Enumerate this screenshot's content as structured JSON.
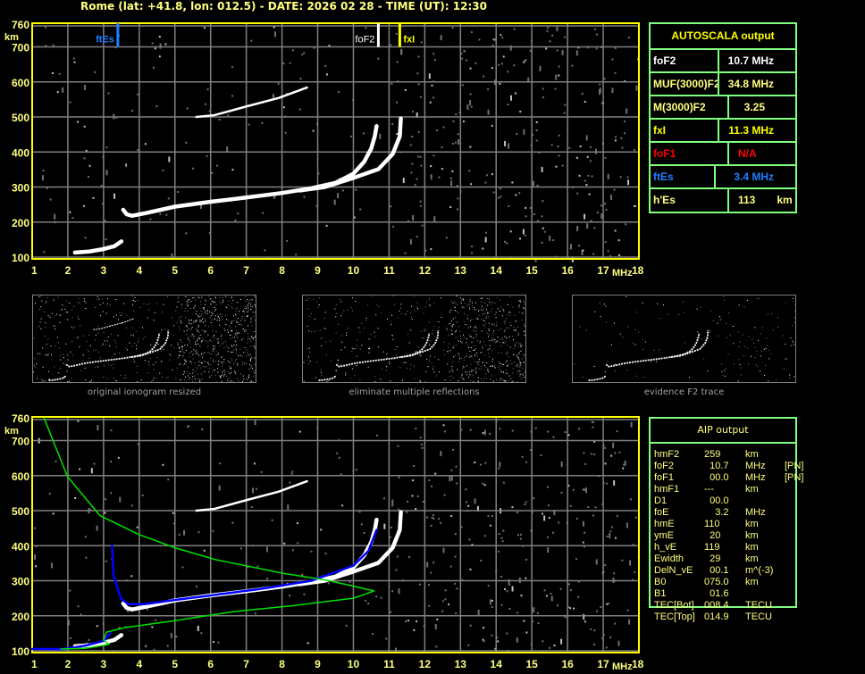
{
  "header": {
    "title": "Rome (lat: +41.8, lon: 012.5) - DATE: 2026 02 28 - TIME (UT): 12:30"
  },
  "autoscala": {
    "title": "AUTOSCALA output",
    "rows": [
      {
        "label": "foF2",
        "value": "10.7 MHz",
        "unit": "",
        "color": "#ffffff"
      },
      {
        "label": "MUF(3000)F2",
        "value": "34.8 MHz",
        "unit": "",
        "color": "#ffff80"
      },
      {
        "label": "M(3000)F2",
        "value": "  3.25",
        "unit": "",
        "color": "#ffff80"
      },
      {
        "label": "fxI",
        "value": "11.3 MHz",
        "unit": "",
        "color": "#ffff00"
      },
      {
        "label": "foF1",
        "value": "N/A",
        "unit": "",
        "color": "#ff0000"
      },
      {
        "label": "ftEs",
        "value": "   3.4 MHz",
        "unit": "",
        "color": "#1e7fff"
      },
      {
        "label": "h'Es",
        "value": "113",
        "unit": "km",
        "color": "#ffff80"
      }
    ]
  },
  "aip": {
    "title": "AIP output",
    "rows": [
      {
        "param": "hmF2",
        "value": "259",
        "unit": "km",
        "flag": ""
      },
      {
        "param": "foF2",
        "value": "  10.7",
        "unit": "MHz",
        "flag": "[PN]"
      },
      {
        "param": "foF1",
        "value": "  00.0",
        "unit": "MHz",
        "flag": "[PN]"
      },
      {
        "param": "hmF1",
        "value": "---",
        "unit": "km",
        "flag": ""
      },
      {
        "param": "D1",
        "value": "  00.0",
        "unit": "",
        "flag": ""
      },
      {
        "param": "foE",
        "value": "    3.2",
        "unit": "MHz",
        "flag": ""
      },
      {
        "param": "hmE",
        "value": "110",
        "unit": "km",
        "flag": ""
      },
      {
        "param": "ymE",
        "value": "  20",
        "unit": "km",
        "flag": ""
      },
      {
        "param": "h_vE",
        "value": "119",
        "unit": "km",
        "flag": ""
      },
      {
        "param": "Ewidth",
        "value": "  29",
        "unit": "km",
        "flag": ""
      },
      {
        "param": "DelN_vE",
        "value": "  00.1",
        "unit": "m^(-3)",
        "flag": ""
      },
      {
        "param": "B0",
        "value": "075.0",
        "unit": "km",
        "flag": ""
      },
      {
        "param": "B1",
        "value": "  01.6",
        "unit": "",
        "flag": ""
      },
      {
        "param": "TEC[Bot]",
        "value": "008.4",
        "unit": "TECU",
        "flag": ""
      },
      {
        "param": "TEC[Top]",
        "value": "014.9",
        "unit": "TECU",
        "flag": ""
      }
    ]
  },
  "thumbnails": [
    {
      "caption": "original ionogram resized"
    },
    {
      "caption": "eliminate multiple reflections"
    },
    {
      "caption": "evidence F2 trace"
    }
  ],
  "colors": {
    "frame": "#ffff00",
    "grid": "#808080",
    "table_border": "#80ff80",
    "label": "#ffff80",
    "trace": "#ffffff",
    "fit": "#0000ff",
    "profile": "#00e000"
  },
  "chart_data": [
    {
      "type": "scatter",
      "xlabel": "MHz",
      "ylabel": "km",
      "xlim": [
        1,
        18
      ],
      "ylim": [
        100,
        760
      ],
      "xticks": [
        "1",
        "2",
        "3",
        "4",
        "5",
        "6",
        "7",
        "8",
        "9",
        "10",
        "11",
        "12",
        "13",
        "14",
        "15",
        "16",
        "17",
        "18"
      ],
      "yticks": [
        "100",
        "200",
        "300",
        "400",
        "500",
        "600",
        "700",
        "760"
      ],
      "grid": true,
      "series": [
        {
          "kind": "trace",
          "color": "#ffffff",
          "points": [
            [
              2.2,
              113
            ],
            [
              2.6,
              116
            ],
            [
              3.0,
              123
            ],
            [
              3.3,
              131
            ],
            [
              3.5,
              145
            ]
          ]
        },
        {
          "kind": "trace",
          "color": "#ffffff",
          "points": [
            [
              3.55,
              235
            ],
            [
              3.65,
              222
            ],
            [
              3.8,
              218
            ],
            [
              4.2,
              226
            ],
            [
              5,
              244
            ],
            [
              6,
              258
            ],
            [
              7,
              270
            ],
            [
              8,
              283
            ],
            [
              8.8,
              296
            ],
            [
              9.5,
              312
            ],
            [
              10,
              338
            ],
            [
              10.3,
              372
            ],
            [
              10.5,
              410
            ],
            [
              10.6,
              445
            ],
            [
              10.65,
              474
            ]
          ]
        },
        {
          "kind": "trace",
          "color": "#ffffff",
          "points": [
            [
              8.5,
              290
            ],
            [
              9.2,
              300
            ],
            [
              10,
              326
            ],
            [
              10.7,
              351
            ],
            [
              11.1,
              394
            ],
            [
              11.3,
              445
            ],
            [
              11.33,
              496
            ]
          ]
        },
        {
          "kind": "trace",
          "color": "#ffffff",
          "points": [
            [
              5.6,
              500
            ],
            [
              6.1,
              505
            ],
            [
              7,
              530
            ],
            [
              7.9,
              554
            ],
            [
              8.7,
              584
            ]
          ]
        }
      ],
      "markers": [
        {
          "label": "ftEs",
          "freq": 3.4,
          "color": "#1e7fff",
          "side": "left"
        },
        {
          "label": "foF2",
          "freq": 10.7,
          "color": "#ffffff",
          "side": "left"
        },
        {
          "label": "fxI",
          "freq": 11.3,
          "color": "#ffff00",
          "side": "right"
        }
      ]
    },
    {
      "type": "line",
      "xlabel": "MHz",
      "ylabel": "km",
      "xlim": [
        1,
        18
      ],
      "ylim": [
        100,
        760
      ],
      "xticks": [
        "1",
        "2",
        "3",
        "4",
        "5",
        "6",
        "7",
        "8",
        "9",
        "10",
        "11",
        "12",
        "13",
        "14",
        "15",
        "16",
        "17",
        "18"
      ],
      "yticks": [
        "100",
        "200",
        "300",
        "400",
        "500",
        "600",
        "700",
        "760"
      ],
      "grid": true,
      "series": [
        {
          "kind": "trace",
          "color": "#ffffff",
          "points": [
            [
              2.2,
              113
            ],
            [
              2.6,
              116
            ],
            [
              3.0,
              123
            ],
            [
              3.3,
              131
            ],
            [
              3.5,
              145
            ]
          ]
        },
        {
          "kind": "trace",
          "color": "#ffffff",
          "points": [
            [
              3.55,
              235
            ],
            [
              3.65,
              222
            ],
            [
              3.8,
              218
            ],
            [
              4.2,
              226
            ],
            [
              5,
              244
            ],
            [
              6,
              258
            ],
            [
              7,
              270
            ],
            [
              8,
              283
            ],
            [
              8.8,
              296
            ],
            [
              9.5,
              312
            ],
            [
              10,
              338
            ],
            [
              10.3,
              372
            ],
            [
              10.5,
              410
            ],
            [
              10.6,
              445
            ],
            [
              10.65,
              474
            ]
          ]
        },
        {
          "kind": "trace",
          "color": "#ffffff",
          "points": [
            [
              8.5,
              290
            ],
            [
              9.2,
              300
            ],
            [
              10,
              326
            ],
            [
              10.7,
              351
            ],
            [
              11.1,
              394
            ],
            [
              11.3,
              445
            ],
            [
              11.33,
              496
            ]
          ]
        },
        {
          "kind": "trace",
          "color": "#ffffff",
          "points": [
            [
              5.6,
              500
            ],
            [
              6.1,
              505
            ],
            [
              7,
              530
            ],
            [
              7.9,
              554
            ],
            [
              8.7,
              584
            ]
          ]
        },
        {
          "kind": "fit",
          "color": "#0000ff",
          "points": [
            [
              1.0,
              105
            ],
            [
              1.9,
              105
            ],
            [
              2.5,
              115
            ],
            [
              3.0,
              128
            ],
            [
              3.2,
              150
            ]
          ]
        },
        {
          "kind": "fit",
          "color": "#0000ff",
          "points": [
            [
              3.24,
              400
            ],
            [
              3.28,
              316
            ],
            [
              3.48,
              250
            ],
            [
              3.69,
              233
            ],
            [
              4.15,
              233
            ],
            [
              5,
              245
            ],
            [
              6,
              258
            ],
            [
              7.5,
              278
            ],
            [
              8.83,
              300
            ],
            [
              10,
              343
            ],
            [
              10.42,
              385
            ],
            [
              10.65,
              445
            ]
          ]
        },
        {
          "kind": "profile",
          "color": "#00e000",
          "points": [
            [
              1.33,
              765
            ],
            [
              1.99,
              597
            ],
            [
              2.9,
              486
            ],
            [
              3.99,
              432
            ],
            [
              5,
              394
            ],
            [
              6.15,
              360
            ],
            [
              7.99,
              322
            ],
            [
              9.33,
              300
            ],
            [
              10.58,
              271
            ],
            [
              10,
              250
            ],
            [
              8.33,
              229
            ],
            [
              6.66,
              212
            ],
            [
              5,
              186
            ],
            [
              3.58,
              166
            ],
            [
              3.08,
              153
            ],
            [
              3.0,
              131
            ],
            [
              3.15,
              118
            ],
            [
              2.49,
              107
            ],
            [
              1.8,
              105
            ]
          ]
        }
      ]
    }
  ]
}
